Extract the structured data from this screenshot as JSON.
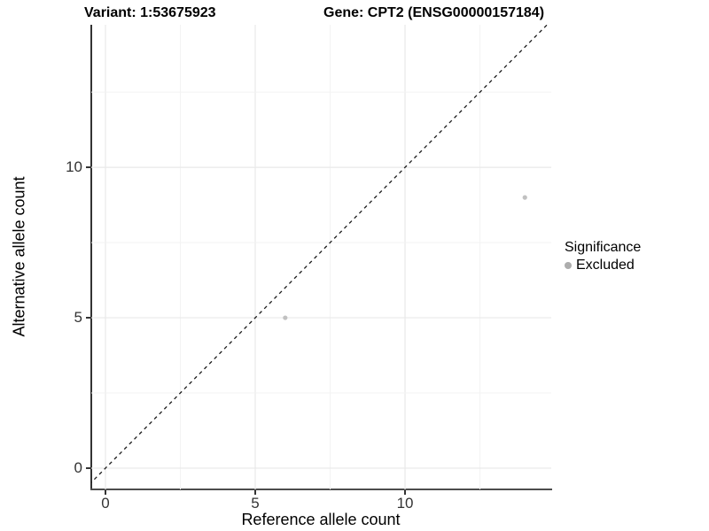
{
  "titles": {
    "variant": "Variant: 1:53675923",
    "gene": "Gene: CPT2 (ENSG00000157184)"
  },
  "chart_data": {
    "type": "scatter",
    "title": "Variant: 1:53675923   Gene: CPT2 (ENSG00000157184)",
    "xlabel": "Reference allele count",
    "ylabel": "Alternative allele count",
    "xlim": [
      -0.473,
      14.88
    ],
    "ylim": [
      -0.706,
      14.74
    ],
    "x_ticks": [
      0,
      5,
      10
    ],
    "y_ticks": [
      0,
      5,
      10
    ],
    "minor_grid_step": 2.5,
    "grid": true,
    "identity_line": {
      "type": "y=x",
      "style": "dashed",
      "color": "#1a1a1a"
    },
    "series": [
      {
        "name": "Excluded",
        "points": [
          {
            "x": 6,
            "y": 5
          },
          {
            "x": 14,
            "y": 9
          }
        ]
      }
    ],
    "legend": {
      "title": "Significance",
      "position": "right",
      "entries": [
        {
          "label": "Excluded",
          "color": "#bdbdbd"
        }
      ]
    },
    "colors": {
      "point": "#c1c1c1",
      "legend_key": "#adadad",
      "grid_major": "#e9e9e9",
      "grid_minor": "#f3f3f3",
      "axis": "#333333"
    }
  }
}
